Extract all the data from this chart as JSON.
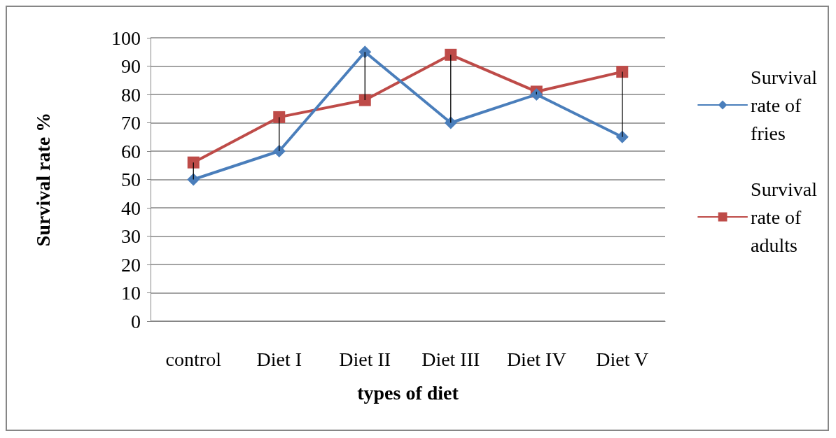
{
  "chart_data": {
    "type": "line",
    "xlabel": "types of diet",
    "ylabel": "Survival rate %",
    "categories": [
      "control",
      "Diet I",
      "Diet II",
      "Diet III",
      "Diet IV",
      "Diet V"
    ],
    "series": [
      {
        "name": "Survival rate of fries",
        "color": "#4a7ebb",
        "marker": "diamond",
        "values": [
          50,
          60,
          95,
          70,
          80,
          65
        ],
        "errors": [
          [
            50,
            56
          ],
          [
            60,
            72
          ],
          [
            78,
            95
          ],
          [
            70,
            94
          ],
          [
            80,
            81
          ],
          [
            65,
            88
          ]
        ]
      },
      {
        "name": "Survival rate of adults",
        "color": "#be4b48",
        "marker": "square",
        "values": [
          56,
          72,
          78,
          94,
          81,
          88
        ]
      }
    ],
    "ylim": [
      0,
      100
    ],
    "yticks": [
      0,
      10,
      20,
      30,
      40,
      50,
      60,
      70,
      80,
      90,
      100
    ],
    "grid": "y",
    "legend": "right",
    "line_style": "solid"
  }
}
